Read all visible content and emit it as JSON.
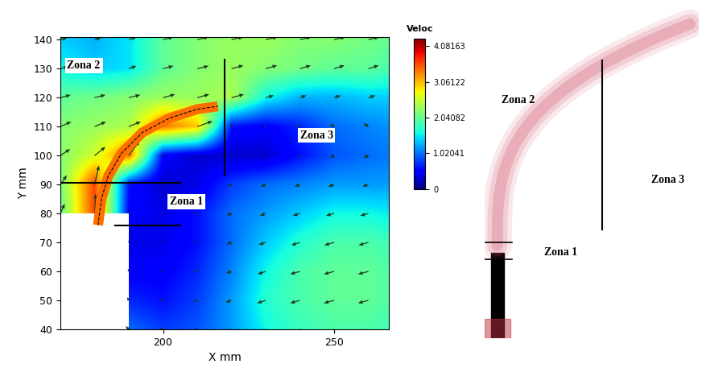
{
  "chart_data": [
    {
      "type": "vector_field",
      "x_label": "X mm",
      "y_label": "Y mm",
      "xlim": [
        170,
        266
      ],
      "ylim": [
        40,
        141
      ],
      "xticks": [
        200,
        250
      ],
      "yticks": [
        40,
        50,
        60,
        70,
        80,
        90,
        100,
        110,
        120,
        130,
        140
      ],
      "grid_x": [
        170,
        180,
        190,
        200,
        210,
        220,
        230,
        240,
        250,
        260,
        270
      ],
      "grid_y": [
        40,
        50,
        60,
        70,
        80,
        90,
        100,
        110,
        120,
        130,
        140
      ],
      "velocity": [
        [
          null,
          null,
          1.0,
          0.8,
          0.9,
          1.2,
          1.6,
          1.8,
          1.9,
          1.9,
          1.8
        ],
        [
          null,
          null,
          0.7,
          0.6,
          0.8,
          1.2,
          1.7,
          1.9,
          2.0,
          2.0,
          1.9
        ],
        [
          null,
          null,
          0.5,
          0.5,
          0.7,
          1.1,
          1.6,
          1.9,
          2.0,
          2.0,
          1.9
        ],
        [
          null,
          null,
          0.4,
          0.4,
          0.6,
          1.0,
          1.4,
          1.7,
          1.9,
          1.9,
          1.8
        ],
        [
          2.0,
          3.6,
          0.5,
          0.4,
          0.6,
          1.0,
          1.2,
          1.4,
          1.6,
          1.6,
          1.5
        ],
        [
          2.1,
          3.6,
          0.6,
          0.3,
          0.4,
          0.8,
          1.0,
          1.1,
          1.2,
          1.2,
          1.2
        ],
        [
          2.2,
          2.6,
          3.4,
          0.5,
          0.3,
          0.3,
          0.3,
          0.6,
          0.9,
          1.0,
          1.1
        ],
        [
          2.2,
          2.3,
          2.4,
          3.4,
          3.0,
          0.6,
          0.5,
          0.7,
          1.0,
          1.1,
          1.2
        ],
        [
          2.0,
          2.1,
          2.2,
          2.3,
          2.3,
          2.4,
          1.6,
          1.3,
          1.3,
          1.4,
          1.4
        ],
        [
          1.6,
          1.4,
          1.5,
          2.0,
          2.2,
          2.3,
          2.2,
          2.1,
          2.0,
          2.0,
          1.8
        ],
        [
          1.4,
          1.3,
          1.5,
          2.0,
          2.2,
          2.3,
          2.3,
          2.2,
          2.2,
          2.1,
          2.0
        ]
      ],
      "u": [
        [
          null,
          null,
          -0.6,
          -0.6,
          -0.8,
          -1.1,
          -1.5,
          -1.7,
          -1.8,
          -1.8,
          -1.7
        ],
        [
          null,
          null,
          -0.3,
          -0.5,
          -0.7,
          -1.1,
          -1.6,
          -1.8,
          -1.9,
          -1.9,
          -1.8
        ],
        [
          null,
          null,
          -0.1,
          -0.3,
          -0.6,
          -1.0,
          -1.5,
          -1.8,
          -1.9,
          -1.9,
          -1.8
        ],
        [
          null,
          null,
          0.0,
          -0.2,
          -0.5,
          -0.9,
          -1.3,
          -1.6,
          -1.8,
          -1.8,
          -1.7
        ],
        [
          0.8,
          0.2,
          -0.3,
          -0.3,
          -0.5,
          -0.9,
          -1.1,
          -1.3,
          -1.5,
          -1.5,
          -1.4
        ],
        [
          1.2,
          0.8,
          -0.4,
          -0.2,
          -0.3,
          -0.7,
          -0.9,
          -1.0,
          -1.1,
          -1.1,
          -1.1
        ],
        [
          1.8,
          2.0,
          2.0,
          -0.4,
          -0.2,
          -0.2,
          -0.2,
          -0.5,
          -0.8,
          -0.9,
          -1.0
        ],
        [
          2.0,
          2.1,
          2.2,
          2.8,
          2.8,
          -0.3,
          -0.3,
          -0.5,
          -0.8,
          -0.9,
          -1.0
        ],
        [
          1.9,
          2.0,
          2.1,
          2.2,
          2.2,
          2.3,
          1.5,
          1.2,
          1.2,
          1.3,
          1.3
        ],
        [
          1.5,
          1.3,
          1.4,
          1.9,
          2.1,
          2.2,
          2.1,
          2.0,
          1.9,
          1.9,
          1.7
        ],
        [
          1.3,
          1.2,
          1.4,
          1.9,
          2.1,
          2.2,
          2.2,
          2.1,
          2.1,
          2.0,
          1.9
        ]
      ],
      "v": [
        [
          null,
          null,
          0.6,
          0.3,
          -0.2,
          -0.4,
          -0.5,
          -0.5,
          -0.5,
          -0.5,
          -0.5
        ],
        [
          null,
          null,
          0.6,
          0.3,
          -0.2,
          -0.4,
          -0.5,
          -0.5,
          -0.5,
          -0.5,
          -0.5
        ],
        [
          null,
          null,
          0.5,
          0.4,
          0.2,
          -0.3,
          -0.5,
          -0.5,
          -0.5,
          -0.5,
          -0.5
        ],
        [
          null,
          null,
          0.4,
          0.3,
          0.2,
          -0.3,
          -0.4,
          -0.5,
          -0.5,
          -0.5,
          -0.5
        ],
        [
          1.8,
          3.6,
          0.4,
          0.2,
          0.2,
          -0.3,
          -0.4,
          -0.4,
          -0.4,
          -0.4,
          -0.4
        ],
        [
          1.7,
          3.5,
          0.4,
          0.2,
          0.2,
          -0.3,
          -0.4,
          -0.4,
          -0.4,
          -0.4,
          -0.4
        ],
        [
          1.2,
          1.6,
          2.7,
          0.3,
          0.2,
          0.2,
          -0.2,
          -0.3,
          -0.4,
          -0.4,
          -0.4
        ],
        [
          0.9,
          0.9,
          0.9,
          1.9,
          1.0,
          0.5,
          0.4,
          0.4,
          0.5,
          0.6,
          0.6
        ],
        [
          0.5,
          0.5,
          0.5,
          0.6,
          0.6,
          0.6,
          0.4,
          0.4,
          0.4,
          0.4,
          0.4
        ],
        [
          0.4,
          0.4,
          0.5,
          0.5,
          0.5,
          0.6,
          0.6,
          0.6,
          0.6,
          0.6,
          0.5
        ],
        [
          0.4,
          0.4,
          0.5,
          0.5,
          0.5,
          0.5,
          0.5,
          0.5,
          0.5,
          0.5,
          0.5
        ]
      ],
      "jet": {
        "x": [
          181,
          182,
          184,
          188,
          194,
          202,
          210,
          216
        ],
        "y": [
          76,
          85,
          93,
          101,
          108,
          113,
          116,
          117
        ],
        "velocity": 3.4
      },
      "colorbar": {
        "title": "Veloc",
        "range": [
          0,
          4.3
        ],
        "ticks": [
          0,
          1.02041,
          2.04082,
          3.06122,
          4.08163
        ]
      },
      "zones": [
        {
          "label": "Zona 2",
          "x": 172,
          "y": 131
        },
        {
          "label": "Zona 3",
          "x": 240,
          "y": 107
        },
        {
          "label": "Zona 1",
          "x": 202,
          "y": 84
        }
      ],
      "zone_lines": [
        {
          "x": [
            170,
            205
          ],
          "y": [
            90.5,
            90.5
          ]
        },
        {
          "x": [
            186,
            205
          ],
          "y": [
            76,
            76
          ]
        },
        {
          "x": [
            218,
            218
          ],
          "y": [
            93,
            133
          ]
        }
      ]
    },
    {
      "type": "image",
      "zones": [
        {
          "label": "Zona 2"
        },
        {
          "label": "Zona 3"
        },
        {
          "label": "Zona 1"
        }
      ]
    }
  ]
}
